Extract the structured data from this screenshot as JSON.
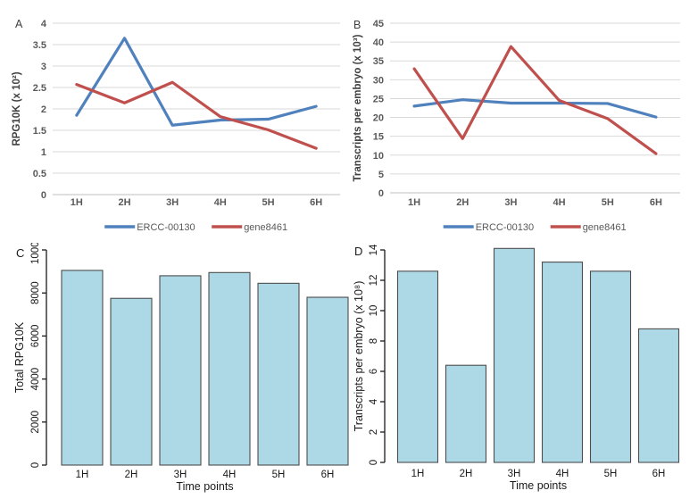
{
  "figure_title": "",
  "panels": {
    "a": {
      "label": "A"
    },
    "b": {
      "label": "B"
    },
    "c": {
      "label": "C"
    },
    "d": {
      "label": "D"
    }
  },
  "colors": {
    "series_blue": "#4F81BD",
    "series_red": "#C0504D",
    "gridline": "#D9D9D9",
    "axis_line_excel": "#BFBFBF",
    "excel_text": "#595959",
    "bar_fill": "#ADD8E6",
    "bar_border": "#4D4D4D",
    "r_text": "#1A1A1A",
    "background": "#FFFFFF"
  },
  "chart_data": [
    {
      "panel_label": "A",
      "type": "line",
      "categories": [
        "1H",
        "2H",
        "3H",
        "4H",
        "5H",
        "6H"
      ],
      "series": [
        {
          "name": "ERCC-00130",
          "color": "#4F81BD",
          "values": [
            1.85,
            3.65,
            1.62,
            1.74,
            1.76,
            2.06
          ]
        },
        {
          "name": "gene8461",
          "color": "#C0504D",
          "values": [
            2.57,
            2.14,
            2.62,
            1.82,
            1.51,
            1.08
          ]
        }
      ],
      "xlabel": "",
      "ylabel": "RPG10K (x 10²)",
      "ylim": [
        0,
        4
      ],
      "ytick_step": 0.5,
      "grid": true,
      "legend_position": "bottom"
    },
    {
      "panel_label": "B",
      "type": "line",
      "categories": [
        "1H",
        "2H",
        "3H",
        "4H",
        "5H",
        "6H"
      ],
      "series": [
        {
          "name": "ERCC-00130",
          "color": "#4F81BD",
          "values": [
            23.0,
            24.7,
            23.8,
            23.8,
            23.7,
            20.1
          ]
        },
        {
          "name": "gene8461",
          "color": "#C0504D",
          "values": [
            32.9,
            14.4,
            38.8,
            24.5,
            19.7,
            10.4
          ]
        }
      ],
      "xlabel": "",
      "ylabel": "Transcripts per embryo (x 10³)",
      "ylim": [
        0,
        45
      ],
      "ytick_step": 5,
      "grid": true,
      "legend_position": "bottom"
    },
    {
      "panel_label": "C",
      "type": "bar",
      "categories": [
        "1H",
        "2H",
        "3H",
        "4H",
        "5H",
        "6H"
      ],
      "values": [
        9050,
        7750,
        8800,
        8950,
        8450,
        7800
      ],
      "xlabel": "Time points",
      "ylabel": "Total RPG10K",
      "ylim": [
        0,
        10000
      ],
      "ytick_step": 2000,
      "bar_color": "#ADD8E6",
      "bar_border": "#4D4D4D",
      "grid": false,
      "legend_position": "none"
    },
    {
      "panel_label": "D",
      "type": "bar",
      "categories": [
        "1H",
        "2H",
        "3H",
        "4H",
        "5H",
        "6H"
      ],
      "values": [
        12.6,
        6.4,
        14.1,
        13.2,
        12.6,
        8.8
      ],
      "xlabel": "Time points",
      "ylabel": "Transcripts per embryo (x 10⁸)",
      "ylim": [
        0,
        14
      ],
      "ytick_step": 2,
      "bar_color": "#ADD8E6",
      "bar_border": "#4D4D4D",
      "grid": false,
      "legend_position": "none"
    }
  ]
}
